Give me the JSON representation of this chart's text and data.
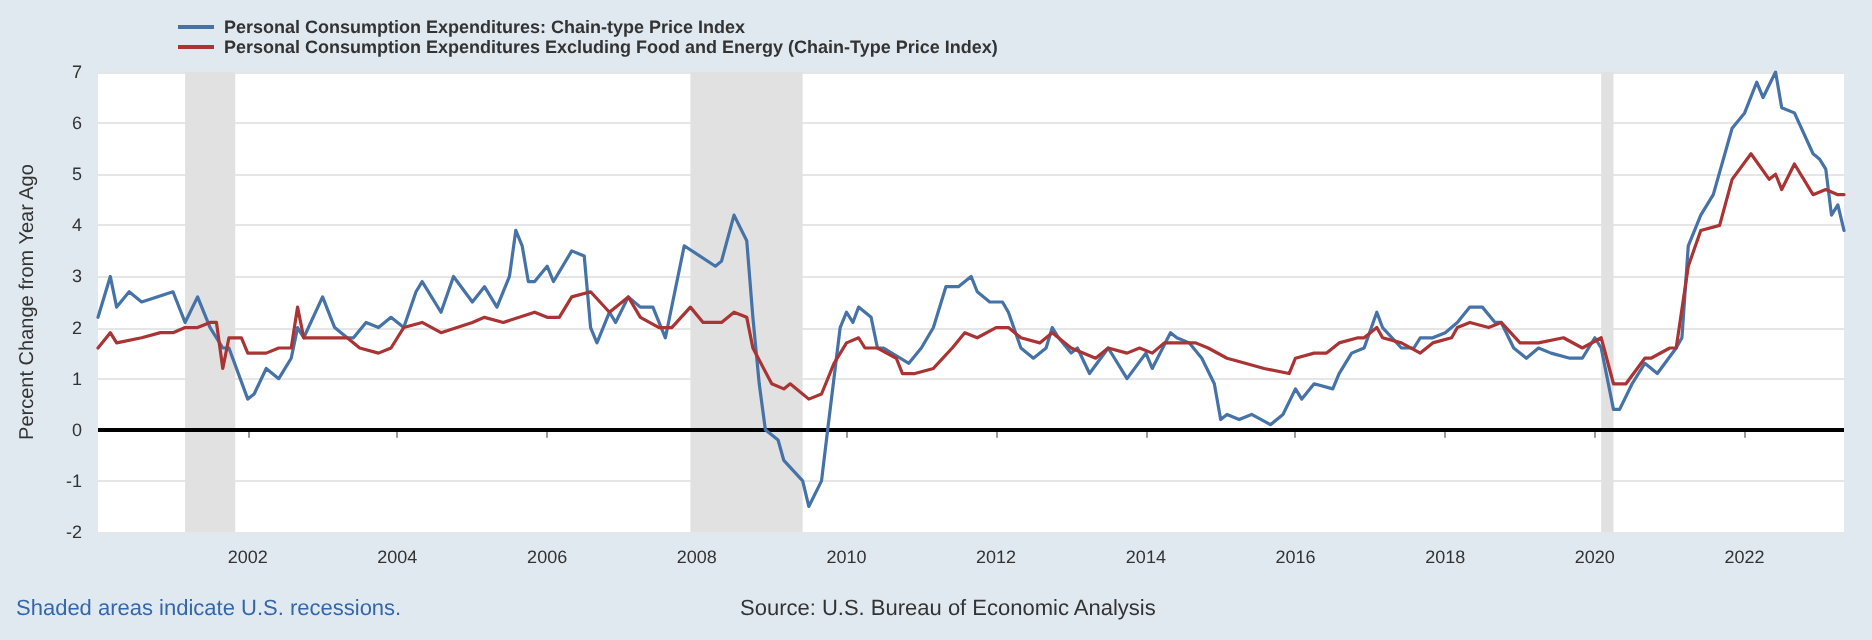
{
  "chart_data": {
    "type": "line",
    "ylabel": "Percent Change from Year Ago",
    "xlim": [
      "2000-01",
      "2023-05"
    ],
    "xticks": [
      "2002",
      "2004",
      "2006",
      "2008",
      "2010",
      "2012",
      "2014",
      "2016",
      "2018",
      "2020",
      "2022"
    ],
    "ylim": [
      -2,
      7
    ],
    "yticks": [
      -2,
      -1,
      0,
      1,
      2,
      3,
      4,
      5,
      6,
      7
    ],
    "grid": "y",
    "legend": "top left",
    "line_style": "solid",
    "marker": "none",
    "bands": [
      {
        "axis": "x",
        "from": "2001-03",
        "to": "2001-11",
        "color": "#e1e1e1"
      },
      {
        "axis": "x",
        "from": "2007-12",
        "to": "2009-06",
        "color": "#e1e1e1"
      },
      {
        "axis": "x",
        "from": "2020-02",
        "to": "2020-04",
        "color": "#e1e1e1"
      }
    ],
    "ref_lines": [
      {
        "axis": "y",
        "value": 0,
        "color": "#000000"
      }
    ],
    "annotations": [
      "Shaded areas indicate U.S. recessions.",
      "Source: U.S. Bureau of Economic Analysis"
    ],
    "series": [
      {
        "name": "Personal Consumption Expenditures: Chain-type Price Index",
        "color": "#4572a7",
        "x": [
          "2000-01",
          "2000-03",
          "2000-04",
          "2000-06",
          "2000-08",
          "2001-01",
          "2001-03",
          "2001-05",
          "2001-07",
          "2001-09",
          "2001-10",
          "2002-01",
          "2002-02",
          "2002-04",
          "2002-06",
          "2002-08",
          "2002-09",
          "2002-10",
          "2003-01",
          "2003-03",
          "2003-05",
          "2003-06",
          "2003-08",
          "2003-10",
          "2003-12",
          "2004-02",
          "2004-04",
          "2004-05",
          "2004-08",
          "2004-10",
          "2005-01",
          "2005-03",
          "2005-05",
          "2005-07",
          "2005-08",
          "2005-09",
          "2005-10",
          "2005-11",
          "2006-01",
          "2006-02",
          "2006-05",
          "2006-07",
          "2006-08",
          "2006-09",
          "2006-11",
          "2006-12",
          "2007-02",
          "2007-04",
          "2007-06",
          "2007-08",
          "2007-11",
          "2008-04",
          "2008-05",
          "2008-07",
          "2008-09",
          "2008-10",
          "2008-11",
          "2008-12",
          "2009-02",
          "2009-03",
          "2009-06",
          "2009-07",
          "2009-09",
          "2009-10",
          "2009-12",
          "2010-01",
          "2010-02",
          "2010-03",
          "2010-05",
          "2010-06",
          "2010-07",
          "2010-11",
          "2011-01",
          "2011-03",
          "2011-05",
          "2011-07",
          "2011-09",
          "2011-10",
          "2011-12",
          "2012-02",
          "2012-03",
          "2012-05",
          "2012-07",
          "2012-09",
          "2012-10",
          "2012-11",
          "2013-01",
          "2013-02",
          "2013-04",
          "2013-07",
          "2013-08",
          "2013-10",
          "2014-01",
          "2014-02",
          "2014-05",
          "2014-06",
          "2014-08",
          "2014-10",
          "2014-12",
          "2015-01",
          "2015-02",
          "2015-04",
          "2015-06",
          "2015-09",
          "2015-11",
          "2016-01",
          "2016-02",
          "2016-04",
          "2016-07",
          "2016-08",
          "2016-10",
          "2016-12",
          "2017-02",
          "2017-03",
          "2017-06",
          "2017-08",
          "2017-09",
          "2017-11",
          "2018-01",
          "2018-03",
          "2018-05",
          "2018-07",
          "2018-09",
          "2018-10",
          "2018-12",
          "2019-02",
          "2019-04",
          "2019-06",
          "2019-09",
          "2019-11",
          "2020-01",
          "2020-02",
          "2020-04",
          "2020-05",
          "2020-07",
          "2020-09",
          "2020-11",
          "2021-02",
          "2021-03",
          "2021-04",
          "2021-06",
          "2021-08",
          "2021-11",
          "2022-01",
          "2022-03",
          "2022-04",
          "2022-06",
          "2022-07",
          "2022-09",
          "2022-12",
          "2023-01",
          "2023-02",
          "2023-03",
          "2023-04",
          "2023-05"
        ],
        "values": [
          2.2,
          3.0,
          2.4,
          2.7,
          2.5,
          2.7,
          2.1,
          2.6,
          2.0,
          1.6,
          1.6,
          0.6,
          0.7,
          1.2,
          1.0,
          1.4,
          2.0,
          1.8,
          2.6,
          2.0,
          1.8,
          1.8,
          2.1,
          2.0,
          2.2,
          2.0,
          2.7,
          2.9,
          2.3,
          3.0,
          2.5,
          2.8,
          2.4,
          3.0,
          3.9,
          3.6,
          2.9,
          2.9,
          3.2,
          2.9,
          3.5,
          3.4,
          2.0,
          1.7,
          2.3,
          2.1,
          2.6,
          2.4,
          2.4,
          1.8,
          3.6,
          3.2,
          3.3,
          4.2,
          3.7,
          2.2,
          0.9,
          0.0,
          -0.2,
          -0.6,
          -1.0,
          -1.5,
          -1.0,
          0.0,
          2.0,
          2.3,
          2.1,
          2.4,
          2.2,
          1.6,
          1.6,
          1.3,
          1.6,
          2.0,
          2.8,
          2.8,
          3.0,
          2.7,
          2.5,
          2.5,
          2.3,
          1.6,
          1.4,
          1.6,
          2.0,
          1.8,
          1.5,
          1.6,
          1.1,
          1.6,
          1.4,
          1.0,
          1.5,
          1.2,
          1.9,
          1.8,
          1.7,
          1.4,
          0.9,
          0.2,
          0.3,
          0.2,
          0.3,
          0.1,
          0.3,
          0.8,
          0.6,
          0.9,
          0.8,
          1.1,
          1.5,
          1.6,
          2.3,
          2.0,
          1.6,
          1.6,
          1.8,
          1.8,
          1.9,
          2.1,
          2.4,
          2.4,
          2.1,
          2.1,
          1.6,
          1.4,
          1.6,
          1.5,
          1.4,
          1.4,
          1.8,
          1.6,
          0.4,
          0.4,
          0.9,
          1.3,
          1.1,
          1.6,
          1.8,
          3.6,
          4.2,
          4.6,
          5.9,
          6.2,
          6.8,
          6.5,
          7.0,
          6.3,
          6.2,
          5.4,
          5.3,
          5.1,
          4.2,
          4.4,
          3.9
        ]
      },
      {
        "name": "Personal Consumption Expenditures Excluding Food and Energy (Chain-Type Price Index)",
        "color": "#aa3333",
        "x": [
          "2000-01",
          "2000-03",
          "2000-04",
          "2000-08",
          "2000-11",
          "2001-01",
          "2001-03",
          "2001-05",
          "2001-07",
          "2001-08",
          "2001-09",
          "2001-10",
          "2001-12",
          "2002-01",
          "2002-04",
          "2002-06",
          "2002-08",
          "2002-09",
          "2002-10",
          "2003-01",
          "2003-05",
          "2003-07",
          "2003-10",
          "2003-12",
          "2004-01",
          "2004-02",
          "2004-05",
          "2004-08",
          "2005-01",
          "2005-03",
          "2005-06",
          "2005-11",
          "2006-01",
          "2006-03",
          "2006-05",
          "2006-08",
          "2006-11",
          "2007-02",
          "2007-04",
          "2007-07",
          "2007-09",
          "2007-12",
          "2008-02",
          "2008-05",
          "2008-07",
          "2008-09",
          "2008-10",
          "2009-01",
          "2009-03",
          "2009-04",
          "2009-07",
          "2009-09",
          "2009-11",
          "2010-01",
          "2010-03",
          "2010-04",
          "2010-06",
          "2010-09",
          "2010-10",
          "2010-12",
          "2011-03",
          "2011-06",
          "2011-08",
          "2011-10",
          "2012-01",
          "2012-03",
          "2012-05",
          "2012-08",
          "2012-10",
          "2013-01",
          "2013-05",
          "2013-07",
          "2013-10",
          "2013-12",
          "2014-02",
          "2014-04",
          "2014-09",
          "2014-11",
          "2015-02",
          "2015-05",
          "2015-08",
          "2015-12",
          "2016-01",
          "2016-04",
          "2016-06",
          "2016-08",
          "2016-11",
          "2016-12",
          "2017-02",
          "2017-03",
          "2017-06",
          "2017-09",
          "2017-11",
          "2018-02",
          "2018-03",
          "2018-05",
          "2018-08",
          "2018-10",
          "2019-01",
          "2019-04",
          "2019-08",
          "2019-11",
          "2020-02",
          "2020-04",
          "2020-06",
          "2020-09",
          "2020-10",
          "2021-01",
          "2021-02",
          "2021-04",
          "2021-06",
          "2021-09",
          "2021-11",
          "2022-02",
          "2022-05",
          "2022-06",
          "2022-07",
          "2022-09",
          "2022-12",
          "2023-02",
          "2023-04",
          "2023-05"
        ],
        "values": [
          1.6,
          1.9,
          1.7,
          1.8,
          1.9,
          1.9,
          2.0,
          2.0,
          2.1,
          2.1,
          1.2,
          1.8,
          1.8,
          1.5,
          1.5,
          1.6,
          1.6,
          2.4,
          1.8,
          1.8,
          1.8,
          1.6,
          1.5,
          1.6,
          1.8,
          2.0,
          2.1,
          1.9,
          2.1,
          2.2,
          2.1,
          2.3,
          2.2,
          2.2,
          2.6,
          2.7,
          2.3,
          2.6,
          2.2,
          2.0,
          2.0,
          2.4,
          2.1,
          2.1,
          2.3,
          2.2,
          1.6,
          0.9,
          0.8,
          0.9,
          0.6,
          0.7,
          1.3,
          1.7,
          1.8,
          1.6,
          1.6,
          1.4,
          1.1,
          1.1,
          1.2,
          1.6,
          1.9,
          1.8,
          2.0,
          2.0,
          1.8,
          1.7,
          1.9,
          1.6,
          1.4,
          1.6,
          1.5,
          1.6,
          1.5,
          1.7,
          1.7,
          1.6,
          1.4,
          1.3,
          1.2,
          1.1,
          1.4,
          1.5,
          1.5,
          1.7,
          1.8,
          1.8,
          2.0,
          1.8,
          1.7,
          1.5,
          1.7,
          1.8,
          2.0,
          2.1,
          2.0,
          2.1,
          1.7,
          1.7,
          1.8,
          1.6,
          1.8,
          0.9,
          0.9,
          1.4,
          1.4,
          1.6,
          1.6,
          3.2,
          3.9,
          4.0,
          4.9,
          5.4,
          4.9,
          5.0,
          4.7,
          5.2,
          4.6,
          4.7,
          4.6,
          4.6
        ]
      }
    ]
  }
}
